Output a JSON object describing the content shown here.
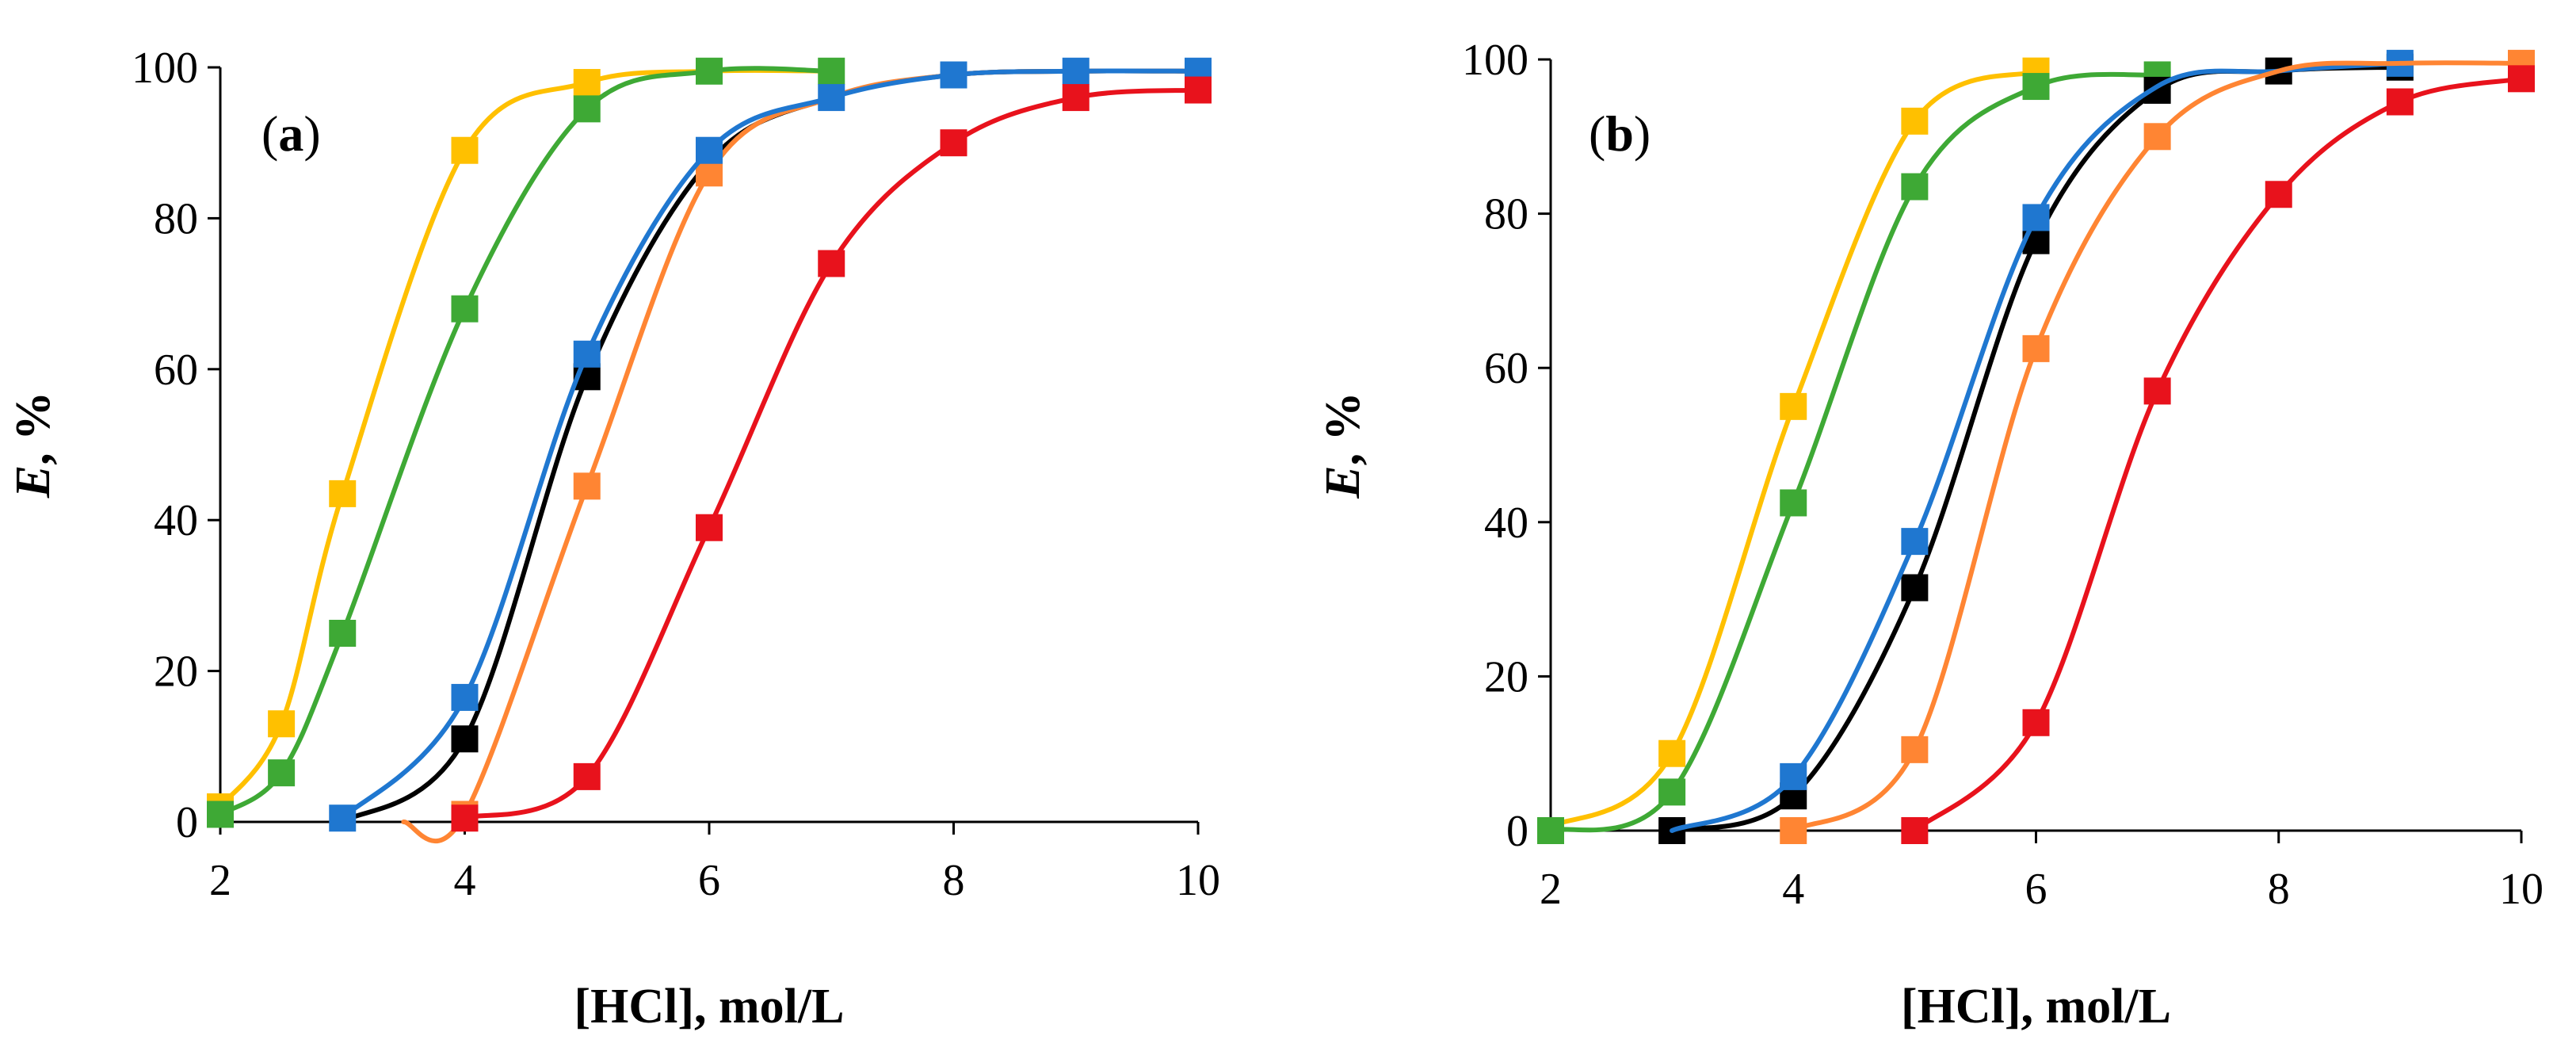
{
  "chart_data": [
    {
      "type": "scatter",
      "panel_label": "a",
      "xlabel": "[HCl], mol/L",
      "ylabel_italic": "E",
      "ylabel_rest": ", %",
      "xlim": [
        2,
        10
      ],
      "ylim": [
        0,
        100
      ],
      "xticks": [
        2,
        4,
        6,
        8,
        10
      ],
      "yticks": [
        0,
        20,
        40,
        60,
        80,
        100
      ],
      "grid": false,
      "series": [
        {
          "name": "yellow",
          "color": "#FFC000",
          "x": [
            2,
            2.5,
            3,
            4,
            5
          ],
          "y": [
            2,
            13,
            43.5,
            89,
            98
          ],
          "curve_x": [
            2,
            2.5,
            3,
            4,
            5,
            6,
            7
          ],
          "curve_y": [
            2,
            13,
            43.5,
            89,
            98,
            99.5,
            99.5
          ]
        },
        {
          "name": "green",
          "color": "#3EA935",
          "x": [
            2,
            2.5,
            3,
            4,
            5,
            6,
            7
          ],
          "y": [
            1,
            6.5,
            25,
            68,
            94.5,
            99.5,
            99.5
          ],
          "curve_x": [
            2,
            2.5,
            3,
            4,
            5,
            6,
            7
          ],
          "curve_y": [
            1,
            6.5,
            25,
            68,
            94.5,
            99.5,
            99.5
          ]
        },
        {
          "name": "black",
          "color": "#000000",
          "x": [
            4,
            5,
            6
          ],
          "y": [
            11,
            59,
            87.5
          ],
          "curve_x": [
            3,
            4,
            5,
            6,
            7,
            8,
            9,
            10
          ],
          "curve_y": [
            0,
            11,
            59,
            87.5,
            96,
            99,
            99.5,
            99.5
          ]
        },
        {
          "name": "orange",
          "color": "#FF8533",
          "x": [
            4,
            5,
            6
          ],
          "y": [
            1,
            44.5,
            86
          ],
          "curve_x": [
            3.5,
            4,
            5,
            6,
            7,
            8,
            9,
            10
          ],
          "curve_y": [
            0,
            1,
            44.5,
            86,
            96,
            99,
            99.5,
            99.5
          ]
        },
        {
          "name": "blue",
          "color": "#1F77D0",
          "x": [
            3,
            4,
            5,
            6,
            7,
            8,
            9,
            10
          ],
          "y": [
            0.5,
            16.5,
            62,
            89,
            96,
            99,
            99.5,
            99.5
          ],
          "curve_x": [
            3,
            4,
            5,
            6,
            7,
            8,
            9,
            10
          ],
          "curve_y": [
            0.5,
            16.5,
            62,
            89,
            96,
            99,
            99.5,
            99.5
          ]
        },
        {
          "name": "red",
          "color": "#E8121C",
          "x": [
            4,
            5,
            6,
            7,
            8,
            9,
            10
          ],
          "y": [
            0.5,
            6,
            39,
            74,
            90,
            96,
            97
          ],
          "curve_x": [
            4,
            5,
            6,
            7,
            8,
            9,
            10
          ],
          "curve_y": [
            0.5,
            6,
            39,
            74,
            90,
            96,
            97
          ]
        }
      ]
    },
    {
      "type": "scatter",
      "panel_label": "b",
      "xlabel": "[HCl], mol/L",
      "ylabel_italic": "E",
      "ylabel_rest": ", %",
      "xlim": [
        2,
        10
      ],
      "ylim": [
        0,
        100
      ],
      "xticks": [
        2,
        4,
        6,
        8,
        10
      ],
      "yticks": [
        0,
        20,
        40,
        60,
        80,
        100
      ],
      "grid": false,
      "series": [
        {
          "name": "yellow",
          "color": "#FFC000",
          "x": [
            3,
            4,
            5,
            6
          ],
          "y": [
            10,
            55,
            92,
            98.5
          ],
          "curve_x": [
            2,
            3,
            4,
            5,
            6
          ],
          "curve_y": [
            0.5,
            10,
            55,
            92,
            98.5
          ]
        },
        {
          "name": "green",
          "color": "#3EA935",
          "x": [
            2,
            3,
            4,
            5,
            6,
            7
          ],
          "y": [
            0,
            5,
            42.5,
            83.5,
            96.5,
            98
          ],
          "curve_x": [
            2,
            3,
            4,
            5,
            6,
            7
          ],
          "curve_y": [
            0,
            5,
            42.5,
            83.5,
            96.5,
            98
          ]
        },
        {
          "name": "black",
          "color": "#000000",
          "x": [
            3,
            4,
            5,
            6,
            7,
            8,
            9
          ],
          "y": [
            0,
            4.5,
            31.5,
            76.5,
            96,
            98.5,
            99
          ],
          "curve_x": [
            3,
            4,
            5,
            6,
            7,
            8,
            9
          ],
          "curve_y": [
            0,
            4.5,
            31.5,
            76.5,
            96,
            98.5,
            99
          ]
        },
        {
          "name": "blue",
          "color": "#1F77D0",
          "x": [
            4,
            5,
            6,
            9
          ],
          "y": [
            7,
            37.5,
            79.5,
            99.5
          ],
          "curve_x": [
            3,
            4,
            5,
            6,
            7,
            8,
            9
          ],
          "curve_y": [
            0,
            7,
            37.5,
            79.5,
            96.5,
            98.5,
            99.5
          ]
        },
        {
          "name": "orange",
          "color": "#FF8533",
          "x": [
            4,
            5,
            6,
            7,
            10
          ],
          "y": [
            0,
            10.5,
            62.5,
            90,
            99.5
          ],
          "curve_x": [
            4,
            5,
            6,
            7,
            8,
            9,
            10
          ],
          "curve_y": [
            0,
            10.5,
            62.5,
            90,
            98.5,
            99.5,
            99.5
          ]
        },
        {
          "name": "red",
          "color": "#E8121C",
          "x": [
            5,
            6,
            7,
            8,
            9,
            10
          ],
          "y": [
            0,
            14,
            57,
            82.5,
            94.5,
            97.5
          ],
          "curve_x": [
            5,
            6,
            7,
            8,
            9,
            10
          ],
          "curve_y": [
            0,
            14,
            57,
            82.5,
            94.5,
            97.5
          ]
        }
      ]
    }
  ]
}
